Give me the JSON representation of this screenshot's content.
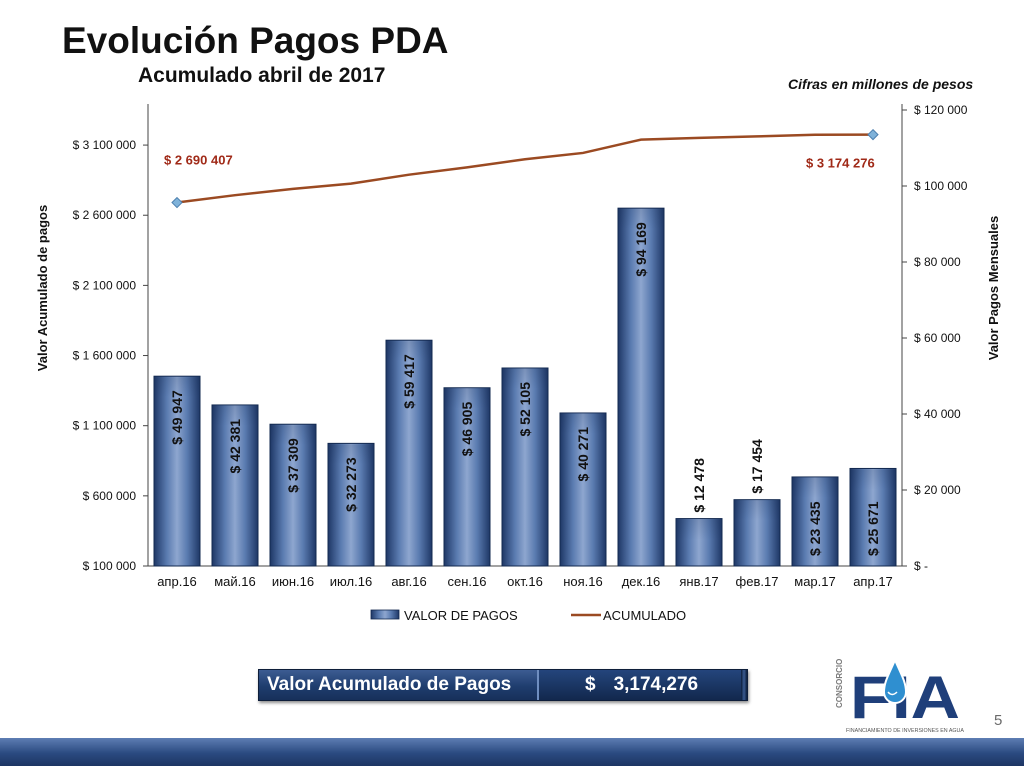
{
  "slide": {
    "title": "Evolución Pagos PDA",
    "subtitle": "Acumulado abril de 2017",
    "units_note": "Cifras en millones de pesos",
    "page_number": "5"
  },
  "summary": {
    "label": "Valor Acumulado de Pagos",
    "currency": "$",
    "value": "3,174,276"
  },
  "logo": {
    "text": "FIA",
    "side_text": "CONSORCIO",
    "caption": "FINANCIAMIENTO DE INVERSIONES EN AGUA"
  },
  "chart_data": {
    "type": "bar",
    "combo": "bar + line (secondary axis)",
    "categories": [
      "апр.16",
      "май.16",
      "июн.16",
      "июл.16",
      "авг.16",
      "сен.16",
      "окт.16",
      "ноя.16",
      "дек.16",
      "янв.17",
      "фев.17",
      "мар.17",
      "апр.17"
    ],
    "series": [
      {
        "name": "VALOR DE PAGOS",
        "type": "bar",
        "axis": "right",
        "values": [
          49947,
          42381,
          37309,
          32273,
          59417,
          46905,
          52105,
          40271,
          94169,
          12478,
          17454,
          23435,
          25671
        ],
        "labels": [
          "$ 49 947",
          "$ 42 381",
          "$ 37 309",
          "$ 32 273",
          "$ 59 417",
          "$ 46 905",
          "$ 52 105",
          "$ 40 271",
          "$ 94 169",
          "$ 12 478",
          "$ 17 454",
          "$ 23 435",
          "$ 25 671"
        ],
        "color": "#3b5a8c"
      },
      {
        "name": "ACUMULADO",
        "type": "line",
        "axis": "left",
        "values": [
          2690407,
          2742788,
          2788000,
          2825000,
          2889000,
          2941000,
          2999000,
          3044000,
          3139000,
          3151000,
          3162000,
          3174000,
          3174276
        ],
        "color": "#9b4a22"
      }
    ],
    "line_labels": [
      {
        "index": 0,
        "text": "$ 2 690 407"
      },
      {
        "index": 12,
        "text": "$ 3 174 276"
      }
    ],
    "ylabel": "Valor Acumulado de pagos",
    "ylabel_right": "Valor Pagos Mensuales",
    "ylim": [
      100000,
      3350000
    ],
    "ylim_right": [
      0,
      120000
    ],
    "yticks_left": [
      {
        "value": 100000,
        "label": "$ 100 000"
      },
      {
        "value": 600000,
        "label": "$ 600 000"
      },
      {
        "value": 1100000,
        "label": "$ 1 100 000"
      },
      {
        "value": 1600000,
        "label": "$ 1 600 000"
      },
      {
        "value": 2100000,
        "label": "$ 2 100 000"
      },
      {
        "value": 2600000,
        "label": "$ 2 600 000"
      },
      {
        "value": 3100000,
        "label": "$ 3 100 000"
      }
    ],
    "yticks_right": [
      {
        "value": 0,
        "label": "$ -"
      },
      {
        "value": 20000,
        "label": "$ 20 000"
      },
      {
        "value": 40000,
        "label": "$ 40 000"
      },
      {
        "value": 60000,
        "label": "$ 60 000"
      },
      {
        "value": 80000,
        "label": "$ 80 000"
      },
      {
        "value": 100000,
        "label": "$ 100 000"
      },
      {
        "value": 120000,
        "label": "$ 120 000"
      }
    ],
    "grid": false,
    "legend": "bottom",
    "label_color": "#a02a18",
    "line_marker_color": "#7fb2d9"
  }
}
